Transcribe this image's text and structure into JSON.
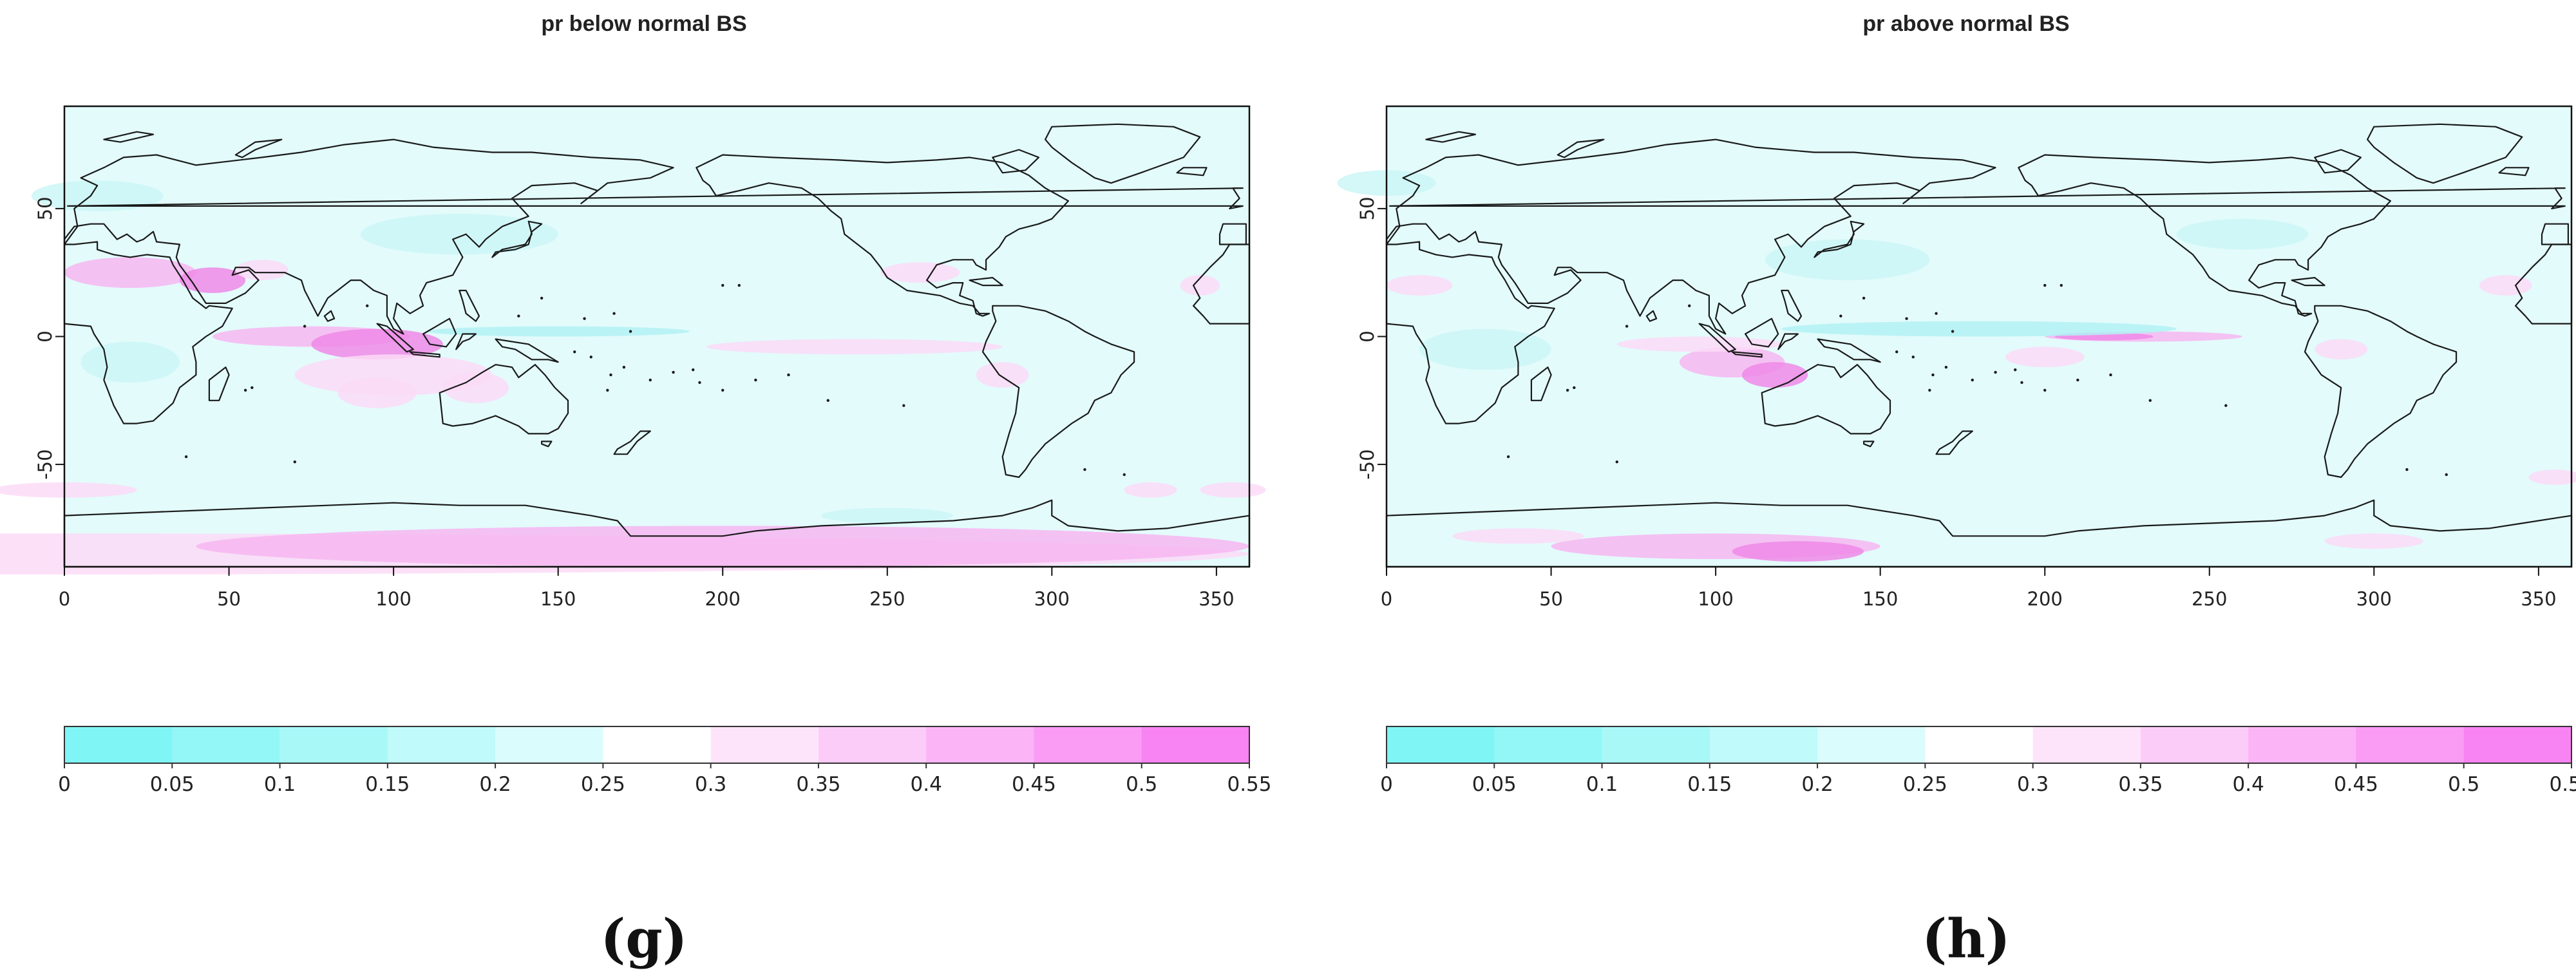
{
  "panels": [
    {
      "title": "pr below normal BS",
      "caption": "(g)",
      "map": {
        "x_ticks": [
          "0",
          "50",
          "100",
          "150",
          "200",
          "250",
          "300",
          "350"
        ],
        "y_ticks": [
          "50",
          "0",
          "-50"
        ],
        "xlim": [
          0,
          360
        ],
        "ylim": [
          -90,
          90
        ],
        "projection": "Pacific-centred equirectangular",
        "coastlines": true,
        "dominant_value_range": [
          0.2,
          0.25
        ],
        "positive_anomaly_regions": [
          "Arabian Peninsula",
          "equatorial Indian Ocean",
          "Antarctica",
          "Southern Ocean"
        ]
      }
    },
    {
      "title": "pr above normal BS",
      "caption": "(h)",
      "map": {
        "x_ticks": [
          "0",
          "50",
          "100",
          "150",
          "200",
          "250",
          "300",
          "350"
        ],
        "y_ticks": [
          "50",
          "0",
          "-50"
        ],
        "xlim": [
          0,
          360
        ],
        "ylim": [
          -90,
          90
        ],
        "projection": "Pacific-centred equirectangular",
        "coastlines": true,
        "dominant_value_range": [
          0.2,
          0.25
        ],
        "positive_anomaly_regions": [
          "Timor Sea",
          "equatorial central Pacific",
          "Antarctica"
        ]
      }
    }
  ],
  "colorbar": {
    "ticks": [
      "0",
      "0.05",
      "0.1",
      "0.15",
      "0.2",
      "0.25",
      "0.3",
      "0.35",
      "0.4",
      "0.45",
      "0.5",
      "0.55"
    ],
    "colors": [
      "#80f5f5",
      "#94f7f7",
      "#a9f8f8",
      "#c0fafa",
      "#dafcfc",
      "#ffffff",
      "#fde4fa",
      "#fcccf8",
      "#fbb4f6",
      "#fa9bf4",
      "#f883f2"
    ]
  },
  "style": {
    "ocean": "#e3fbfb",
    "pink_light": "#fcdaf7",
    "pink_mid": "#f7b6f1",
    "pink_strong": "#ee8ae6",
    "cyan_light": "#cdf6f6",
    "cyan_mid": "#b3f1f4",
    "coast": "#1a1a1a"
  }
}
